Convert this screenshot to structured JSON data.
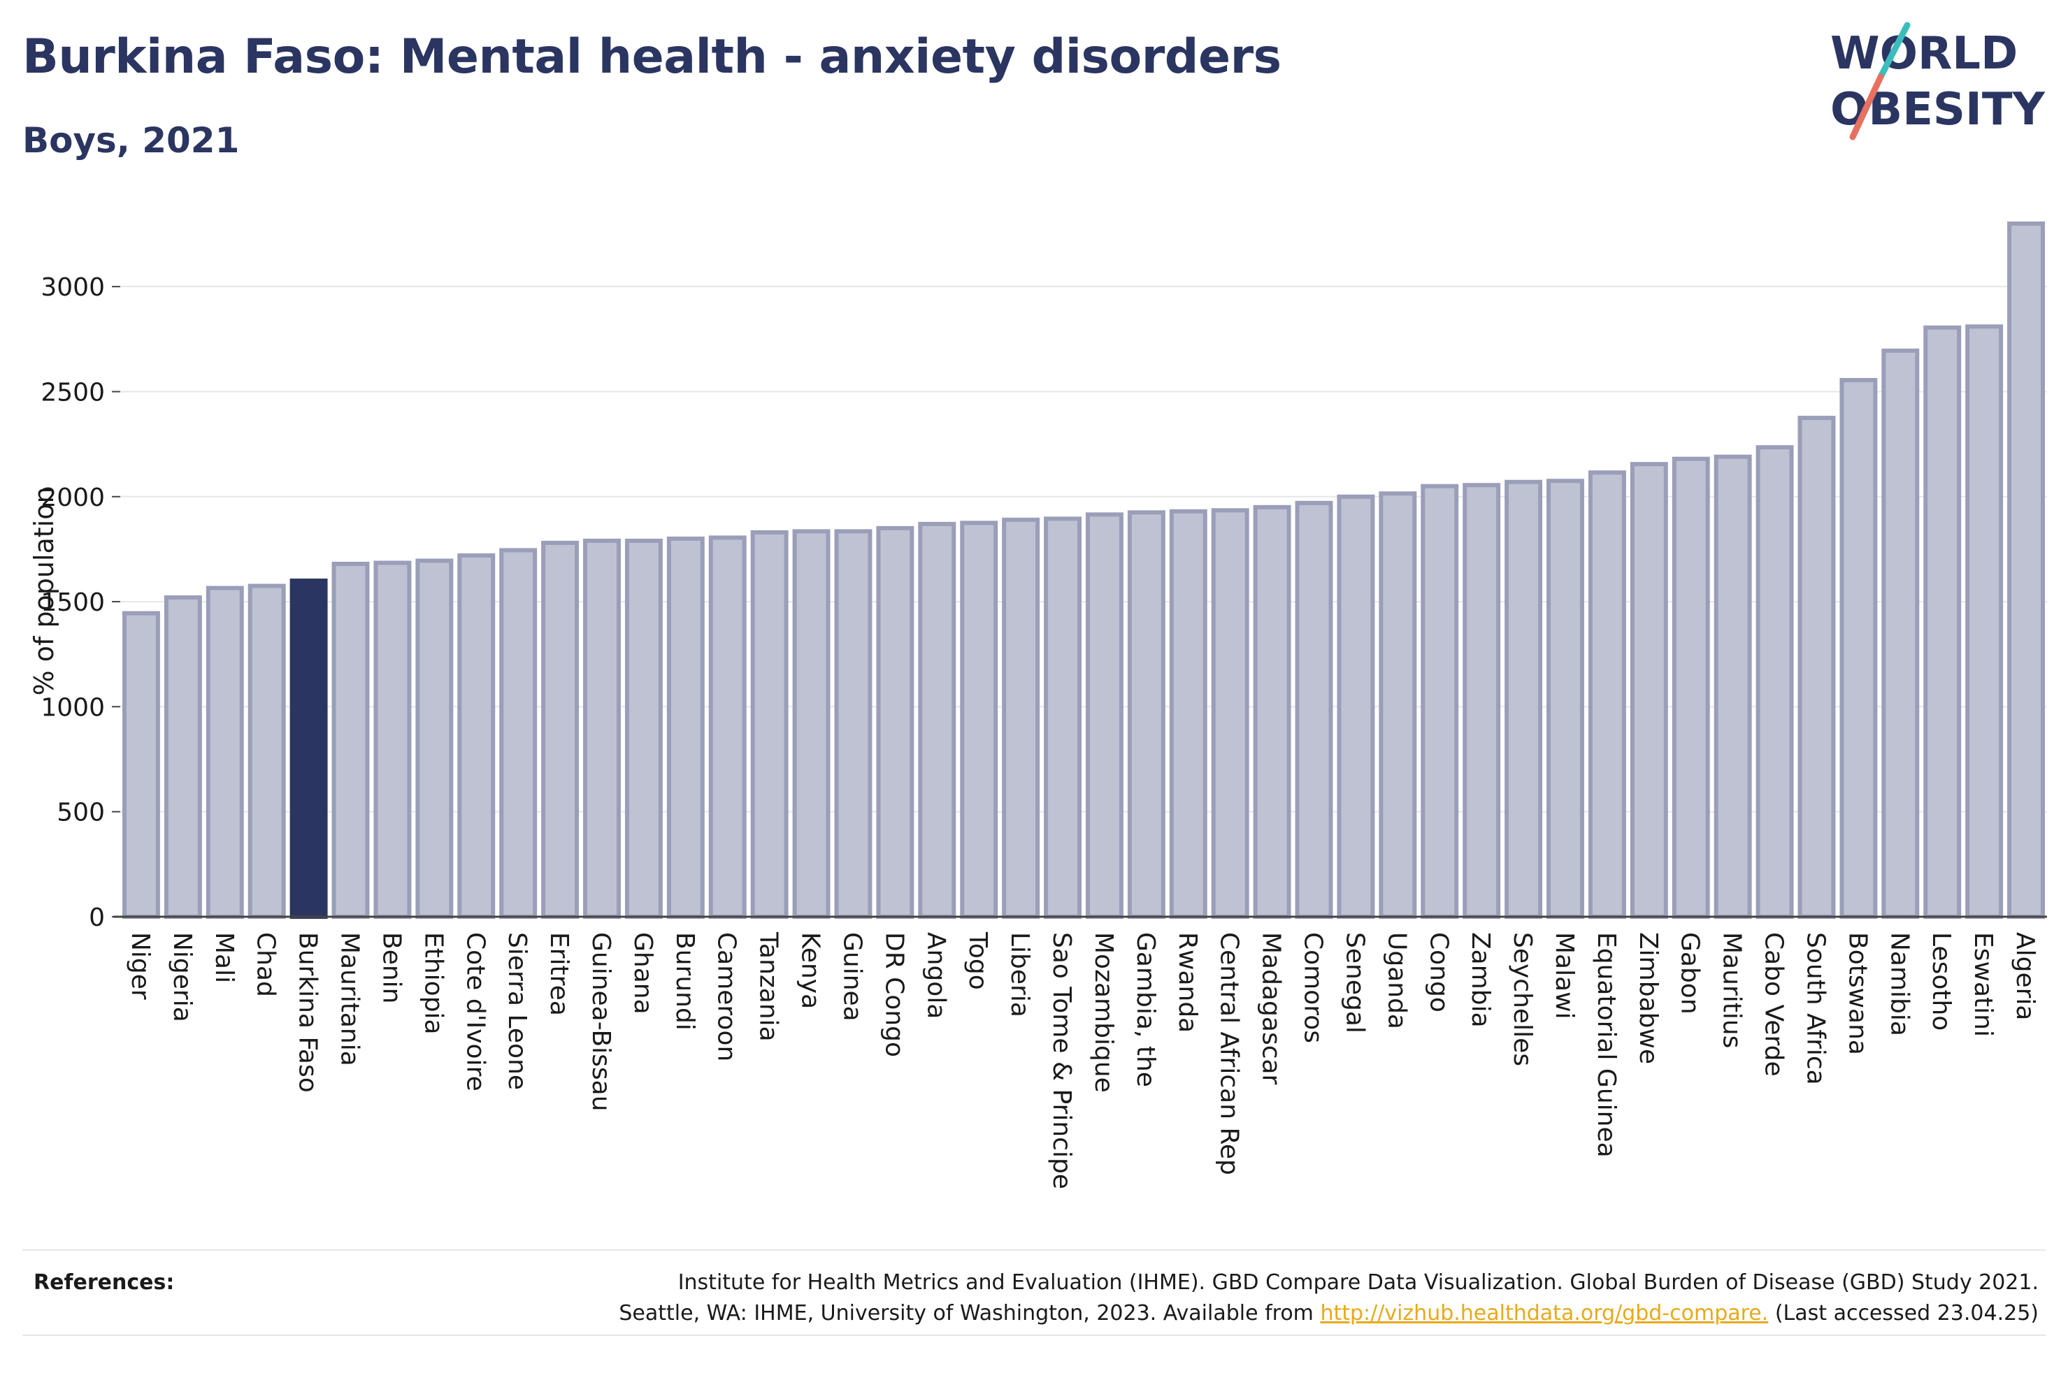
{
  "header": {
    "title": "Burkina Faso: Mental health - anxiety disorders",
    "subtitle": "Boys, 2021"
  },
  "logo": {
    "line1": "WORLD",
    "line2": "OBESITY",
    "colors": {
      "text": "#2b3561",
      "slash_top": "#3bbdbd",
      "slash_bottom": "#e8705f"
    }
  },
  "colors": {
    "bar": "#bfc2d2",
    "bar_border": "#9a9eb8",
    "highlight": "#2b3561",
    "axis": "#444444",
    "grid": "#e6e6ea"
  },
  "chart_data": {
    "type": "bar",
    "title": "Burkina Faso: Mental health - anxiety disorders",
    "subtitle": "Boys, 2021",
    "xlabel": "",
    "ylabel": "% of population",
    "ylim": [
      0,
      3300
    ],
    "yticks": [
      0,
      500,
      1000,
      1500,
      2000,
      2500,
      3000
    ],
    "grid": true,
    "highlight": "Burkina Faso",
    "categories": [
      "Niger",
      "Nigeria",
      "Mali",
      "Chad",
      "Burkina Faso",
      "Mauritania",
      "Benin",
      "Ethiopia",
      "Cote d'Ivoire",
      "Sierra Leone",
      "Eritrea",
      "Guinea-Bissau",
      "Ghana",
      "Burundi",
      "Cameroon",
      "Tanzania",
      "Kenya",
      "Guinea",
      "DR Congo",
      "Angola",
      "Togo",
      "Liberia",
      "Sao Tome & Principe",
      "Mozambique",
      "Gambia, the",
      "Rwanda",
      "Central African Rep",
      "Madagascar",
      "Comoros",
      "Senegal",
      "Uganda",
      "Congo",
      "Zambia",
      "Seychelles",
      "Malawi",
      "Equatorial Guinea",
      "Zimbabwe",
      "Gabon",
      "Mauritius",
      "Cabo Verde",
      "South Africa",
      "Botswana",
      "Namibia",
      "Lesotho",
      "Eswatini",
      "Algeria"
    ],
    "values": [
      1445,
      1520,
      1565,
      1575,
      1600,
      1680,
      1685,
      1695,
      1720,
      1745,
      1780,
      1790,
      1790,
      1800,
      1805,
      1830,
      1835,
      1835,
      1850,
      1870,
      1875,
      1890,
      1895,
      1915,
      1925,
      1930,
      1935,
      1950,
      1970,
      2000,
      2015,
      2050,
      2055,
      2070,
      2075,
      2115,
      2155,
      2180,
      2190,
      2235,
      2375,
      2555,
      2695,
      2805,
      2810,
      3300
    ]
  },
  "references": {
    "label": "References:",
    "line1": "Institute for Health Metrics and Evaluation (IHME). GBD Compare Data Visualization. Global Burden of Disease (GBD) Study 2021.",
    "line2_before": "Seattle, WA: IHME, University of Washington, 2023. Available from ",
    "link": "http://vizhub.healthdata.org/gbd-compare.",
    "line2_after": " (Last accessed 23.04.25)"
  }
}
